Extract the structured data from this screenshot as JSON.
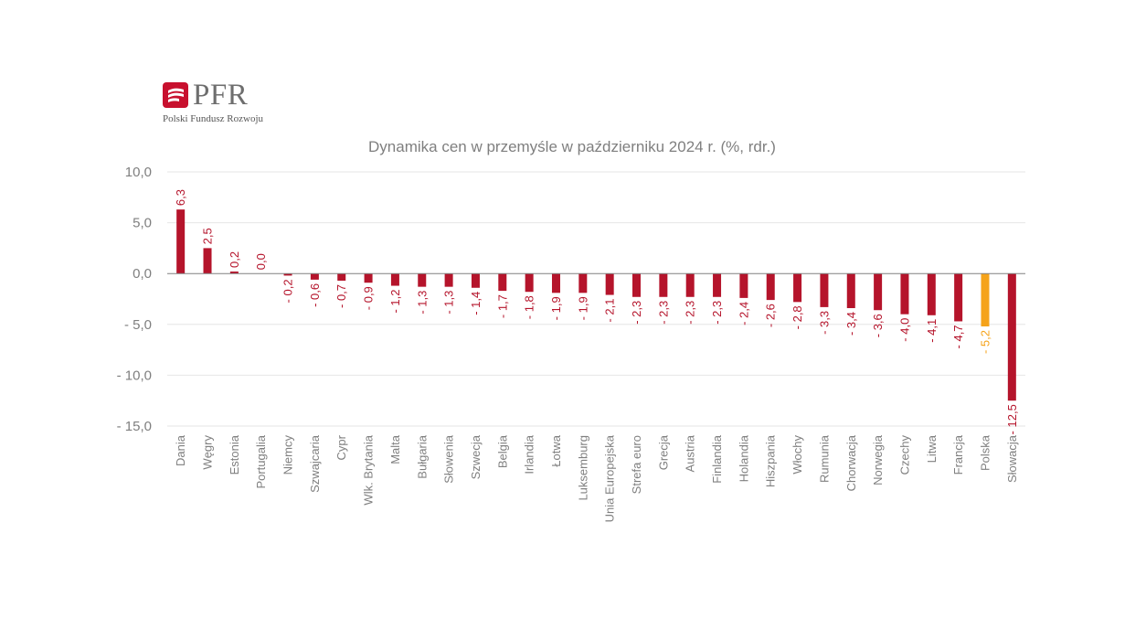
{
  "logo": {
    "name": "PFR",
    "subtitle": "Polski Fundusz Rozwoju",
    "brand_color": "#c8102e"
  },
  "colors": {
    "bar": "#b5142b",
    "highlight": "#f5a31a",
    "title": "#7f7f7f",
    "axis_text": "#7f7f7f",
    "gridline": "#e6e6e6",
    "zero_line": "#808080"
  },
  "chart_data": {
    "type": "bar",
    "title": "Dynamika cen w przemyśle w październiku 2024 r. (%, rdr.)",
    "xlabel": "",
    "ylabel": "",
    "ylim": [
      -15,
      10
    ],
    "yticks": [
      10,
      5,
      0,
      -5,
      -10,
      -15
    ],
    "ytick_labels": [
      "10,0",
      "5,0",
      "0,0",
      "- 5,0",
      "- 10,0",
      "- 15,0"
    ],
    "grid": true,
    "legend": "none",
    "highlight_category": "Polska",
    "categories": [
      "Dania",
      "Węgry",
      "Estonia",
      "Portugalia",
      "Niemcy",
      "Szwajcaria",
      "Cypr",
      "Wlk. Brytania",
      "Malta",
      "Bułgaria",
      "Słowenia",
      "Szwecja",
      "Belgia",
      "Irlandia",
      "Łotwa",
      "Luksemburg",
      "Unia Europejska",
      "Strefa euro",
      "Grecja",
      "Austria",
      "Finlandia",
      "Holandia",
      "Hiszpania",
      "Włochy",
      "Rumunia",
      "Chorwacja",
      "Norwegia",
      "Czechy",
      "Litwa",
      "Francja",
      "Polska",
      "Słowacja"
    ],
    "values": [
      6.3,
      2.5,
      0.2,
      0.0,
      -0.2,
      -0.6,
      -0.7,
      -0.9,
      -1.2,
      -1.3,
      -1.3,
      -1.4,
      -1.7,
      -1.8,
      -1.9,
      -1.9,
      -2.1,
      -2.3,
      -2.3,
      -2.3,
      -2.3,
      -2.4,
      -2.6,
      -2.8,
      -3.3,
      -3.4,
      -3.6,
      -4.0,
      -4.1,
      -4.7,
      -5.2,
      -12.5
    ],
    "data_labels": [
      "6,3",
      "2,5",
      "0,2",
      "0,0",
      "- 0,2",
      "- 0,6",
      "- 0,7",
      "- 0,9",
      "- 1,2",
      "- 1,3",
      "- 1,3",
      "- 1,4",
      "- 1,7",
      "- 1,8",
      "- 1,9",
      "- 1,9",
      "- 2,1",
      "- 2,3",
      "- 2,3",
      "- 2,3",
      "- 2,3",
      "- 2,4",
      "- 2,6",
      "- 2,8",
      "- 3,3",
      "- 3,4",
      "- 3,6",
      "- 4,0",
      "- 4,1",
      "- 4,7",
      "- 5,2",
      "- 12,5"
    ]
  }
}
